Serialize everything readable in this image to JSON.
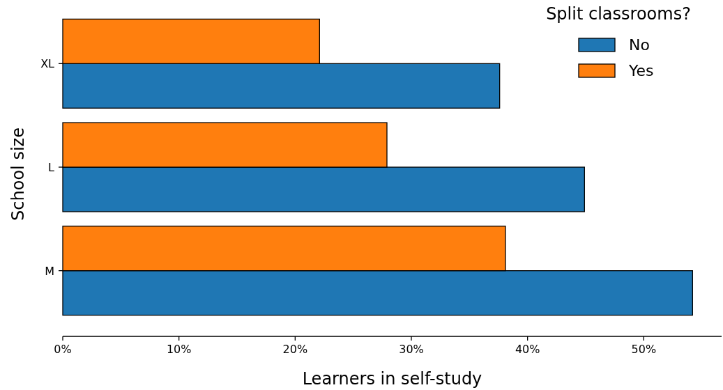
{
  "chart_data": {
    "type": "bar",
    "orientation": "horizontal",
    "xlabel": "Learners in self-study",
    "ylabel": "School size",
    "legend_title": "Split classrooms?",
    "legend": "top right",
    "categories": [
      "XL",
      "L",
      "M"
    ],
    "series": [
      {
        "name": "No",
        "color": "#1f77b4",
        "values": [
          37.6,
          44.9,
          54.2
        ]
      },
      {
        "name": "Yes",
        "color": "#ff7f0e",
        "values": [
          22.1,
          27.9,
          38.1
        ]
      }
    ],
    "xlim": [
      0,
      56.7
    ],
    "xticks": [
      {
        "value": 0,
        "label": "0%"
      },
      {
        "value": 10,
        "label": "10%"
      },
      {
        "value": 20,
        "label": "20%"
      },
      {
        "value": 30,
        "label": "30%"
      },
      {
        "value": 40,
        "label": "40%"
      },
      {
        "value": 50,
        "label": "50%"
      }
    ]
  }
}
